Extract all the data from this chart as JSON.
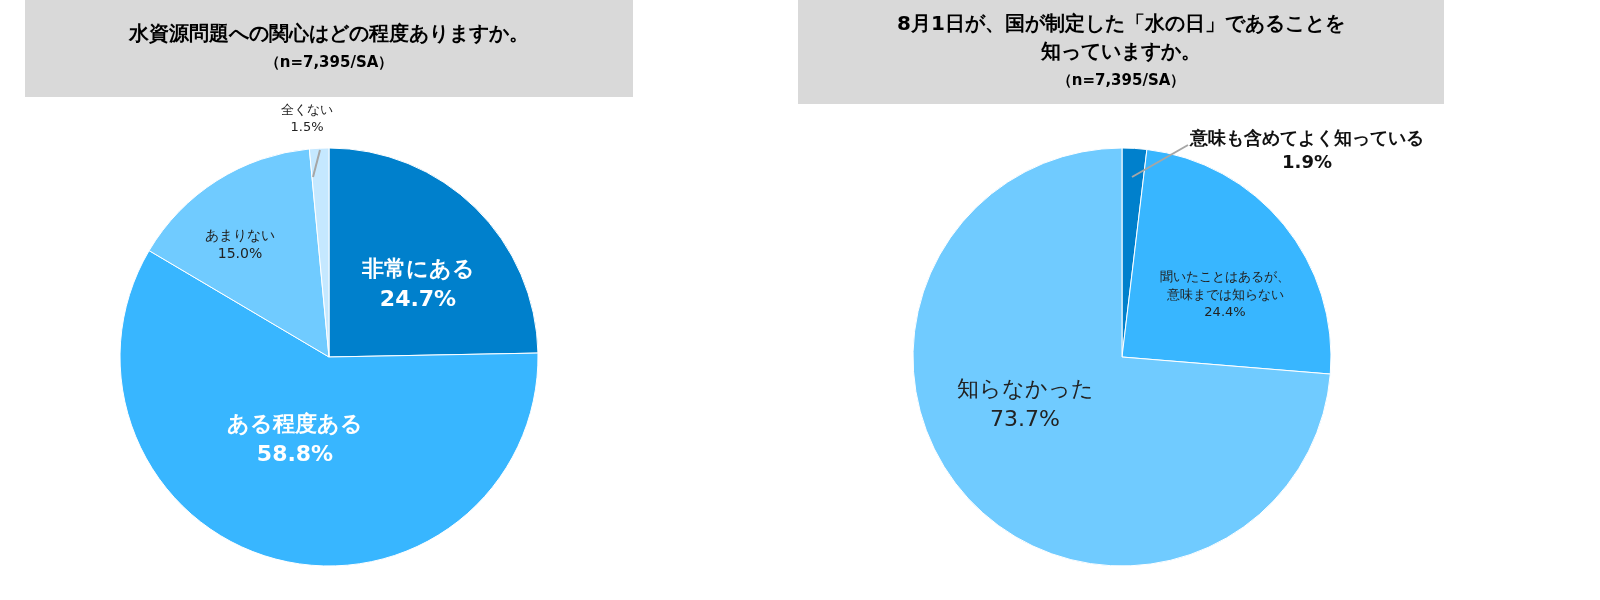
{
  "chart_data": [
    {
      "type": "pie",
      "title": "水資源問題への関心はどの程度ありますか。",
      "subtitle": "（n=7,395/SA）",
      "categories": [
        "非常にある",
        "ある程度ある",
        "あまりない",
        "全くない"
      ],
      "values": [
        24.7,
        58.8,
        15.0,
        1.5
      ],
      "value_labels": [
        "24.7%",
        "58.8%",
        "15.0%",
        "1.5%"
      ],
      "colors": [
        "#0080cc",
        "#38b6ff",
        "#70cbff",
        "#c5e8ff"
      ]
    },
    {
      "type": "pie",
      "title": "8月1日が、国が制定した「水の日」であることを知っていますか。",
      "subtitle": "（n=7,395/SA）",
      "categories": [
        "意味も含めてよく知っている",
        "聞いたことはあるが、意味までは知らない",
        "知らなかった"
      ],
      "values": [
        1.9,
        24.4,
        73.7
      ],
      "value_labels": [
        "1.9%",
        "24.4%",
        "73.7%"
      ],
      "colors": [
        "#0080cc",
        "#38b6ff",
        "#70cbff"
      ]
    }
  ]
}
